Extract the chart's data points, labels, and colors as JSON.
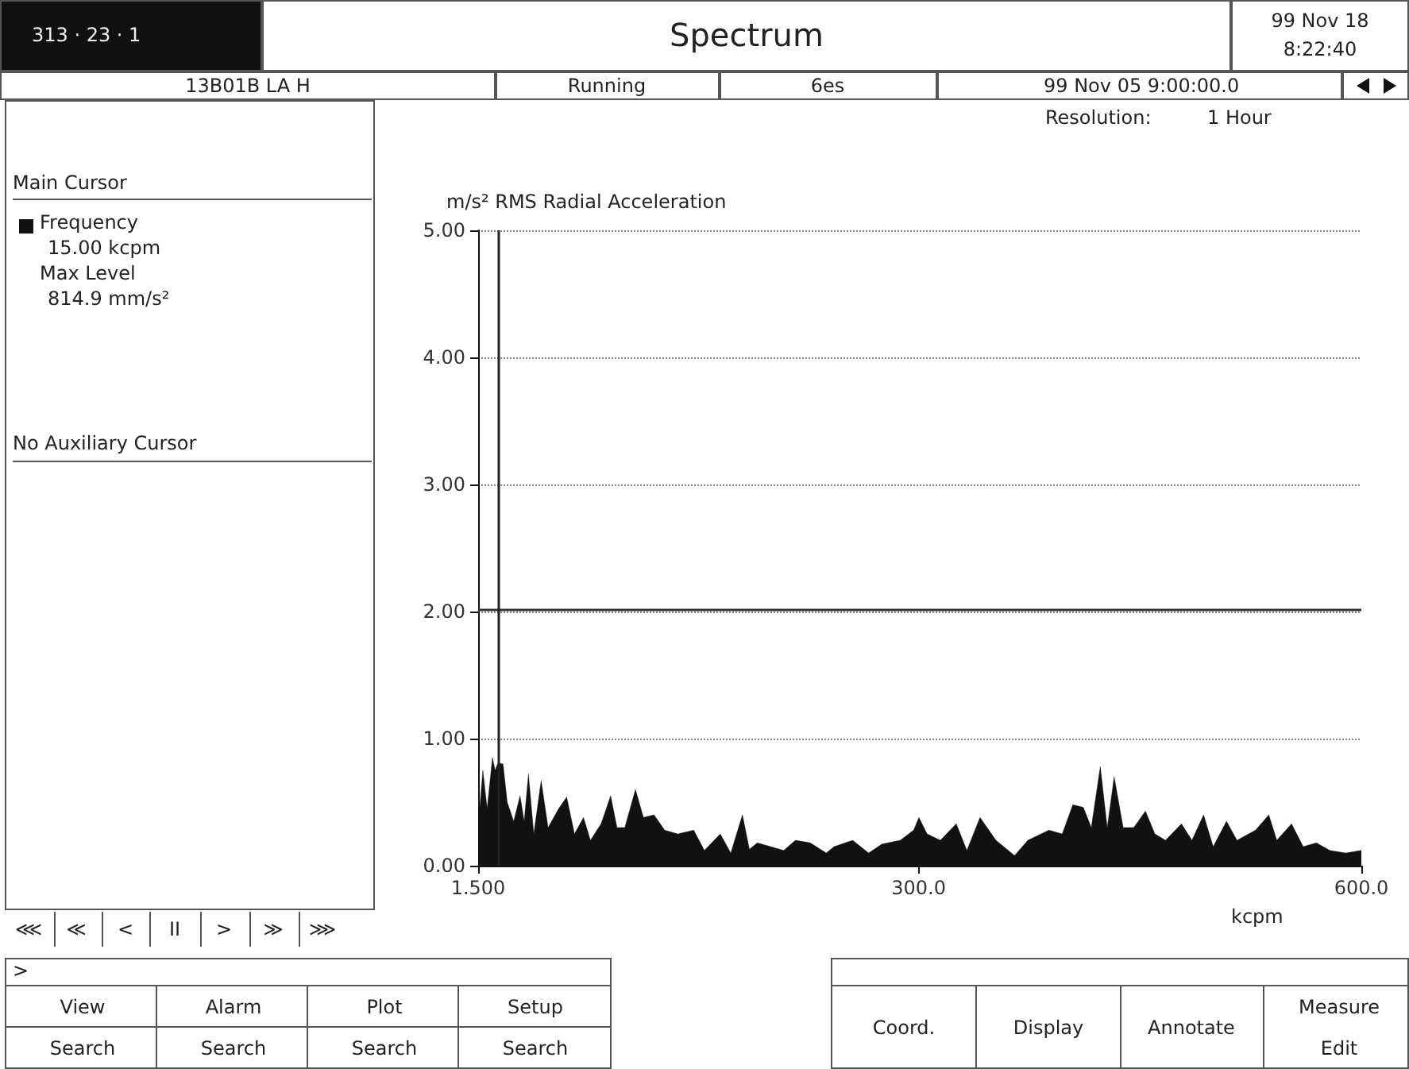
{
  "chart_data": {
    "type": "area",
    "title": "Spectrum",
    "ylabel": "m/s² RMS Radial Acceleration",
    "xlabel": "kcpm",
    "annotations": [
      "313 · 23 · 1",
      "99 Nov 18",
      "8:22:40",
      "13B01B LA H",
      "Running",
      "6es",
      "99 Nov 05  9:00:00.0",
      "Resolution:",
      "1 Hour",
      "Main Cursor",
      "Frequency",
      "15.00 kcpm",
      "Max Level",
      "814.9 mm/s²",
      "No Auxiliary Cursor",
      "⋘",
      "≪",
      "<",
      "II",
      ">",
      "≫",
      "⋙",
      ">",
      "View",
      "Search",
      "Alarm",
      "Search",
      "Plot",
      "Search",
      "Setup",
      "Search",
      "Coord.",
      "Display",
      "Annotate",
      "Measure",
      "Edit"
    ],
    "x": [
      2.2,
      4.7,
      7.6,
      11.2,
      13.0,
      15.0,
      18.4,
      21.2,
      25.6,
      29.9,
      32.7,
      35.6,
      39.2,
      44.2,
      48.9,
      56.1,
      61.5,
      66.8,
      72.9,
      77.6,
      84.8,
      91.3,
      95.6,
      100.9,
      108.1,
      113.5,
      120.7,
      127.9,
      136.8,
      147.6,
      154.8,
      165.6,
      172.7,
      180.6,
      185.3,
      190.7,
      199.7,
      208.6,
      216.5,
      226.6,
      237.4,
      242.7,
      255.3,
      266.1,
      275.1,
      287.6,
      296.6,
      300.2,
      305.7,
      314.7,
      325.5,
      332.7,
      341.6,
      352.4,
      365.0,
      374.0,
      388.3,
      397.3,
      404.5,
      411.6,
      417.0,
      423.1,
      427.8,
      432.5,
      438.6,
      445.8,
      453.7,
      460.1,
      467.3,
      478.1,
      485.2,
      493.1,
      499.6,
      508.6,
      515.7,
      528.3,
      537.3,
      542.7,
      552.7,
      560.6,
      569.6,
      578.6,
      589.4,
      600.0
    ],
    "series": [
      {
        "color": "#111111",
        "values": [
          0.4,
          0.75,
          0.45,
          0.85,
          0.75,
          0.81,
          0.8,
          0.5,
          0.35,
          0.55,
          0.35,
          0.72,
          0.25,
          0.67,
          0.3,
          0.45,
          0.54,
          0.25,
          0.38,
          0.2,
          0.33,
          0.55,
          0.3,
          0.3,
          0.6,
          0.38,
          0.4,
          0.28,
          0.25,
          0.28,
          0.12,
          0.25,
          0.1,
          0.4,
          0.13,
          0.18,
          0.15,
          0.12,
          0.2,
          0.18,
          0.1,
          0.15,
          0.2,
          0.1,
          0.17,
          0.2,
          0.28,
          0.38,
          0.25,
          0.2,
          0.33,
          0.12,
          0.38,
          0.2,
          0.08,
          0.2,
          0.28,
          0.25,
          0.48,
          0.46,
          0.3,
          0.78,
          0.3,
          0.7,
          0.3,
          0.3,
          0.43,
          0.25,
          0.2,
          0.33,
          0.2,
          0.4,
          0.15,
          0.35,
          0.2,
          0.28,
          0.4,
          0.2,
          0.33,
          0.15,
          0.18,
          0.12,
          0.1,
          0.12
        ]
      }
    ],
    "xlim": [
      1.5,
      600
    ],
    "xticks": [
      {
        "value": 1.5,
        "label": "1.500"
      },
      {
        "value": 300,
        "label": "300.0"
      },
      {
        "value": 600,
        "label": "600.0"
      }
    ],
    "ylim": [
      0,
      5
    ],
    "yticks": [
      {
        "value": 0,
        "label": "0.00"
      },
      {
        "value": 1,
        "label": "1.00"
      },
      {
        "value": 2,
        "label": "2.00"
      },
      {
        "value": 3,
        "label": "3.00"
      },
      {
        "value": 4,
        "label": "4.00"
      },
      {
        "value": 5,
        "label": "5.00"
      }
    ],
    "ref_lines": [
      {
        "axis": "y",
        "value": 2.02,
        "color": "#333333",
        "line_style": "solid"
      },
      {
        "axis": "x",
        "value": 15,
        "color": "#222222",
        "line_style": "solid"
      }
    ],
    "grid": "y",
    "line_style": "solid",
    "marker": "none"
  }
}
